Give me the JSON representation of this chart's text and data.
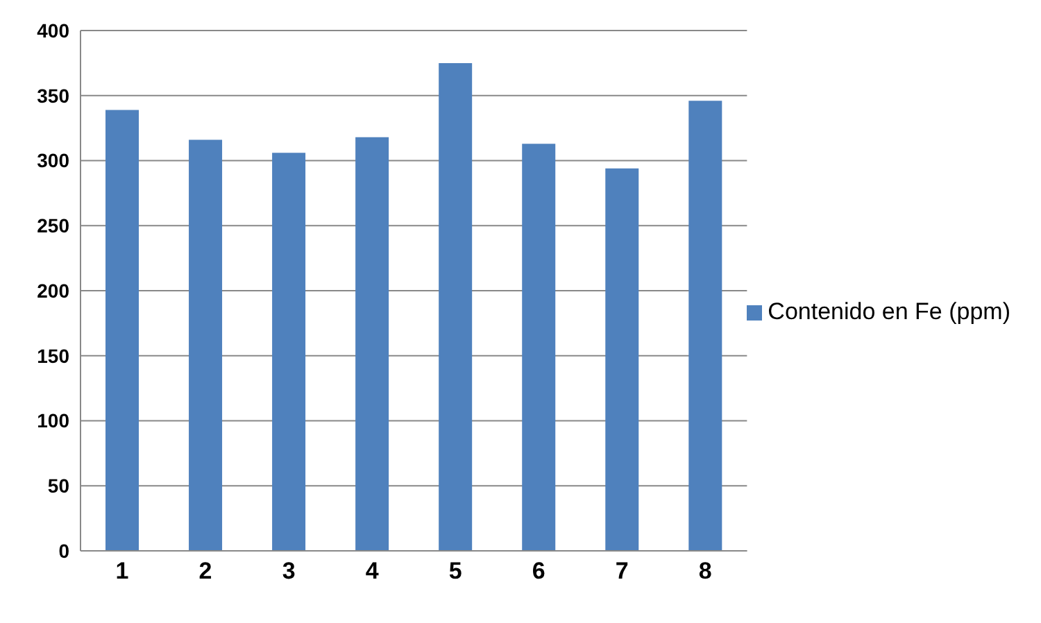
{
  "chart_data": {
    "type": "bar",
    "categories": [
      "1",
      "2",
      "3",
      "4",
      "5",
      "6",
      "7",
      "8"
    ],
    "series": [
      {
        "name": "Contenido en Fe (ppm)",
        "color": "#4f81bd",
        "values": [
          339,
          316,
          306,
          318,
          375,
          313,
          294,
          346
        ]
      }
    ],
    "ylim": [
      0,
      400
    ],
    "yticks": [
      0,
      50,
      100,
      150,
      200,
      250,
      300,
      350,
      400
    ],
    "grid": "y",
    "legend": "right"
  }
}
